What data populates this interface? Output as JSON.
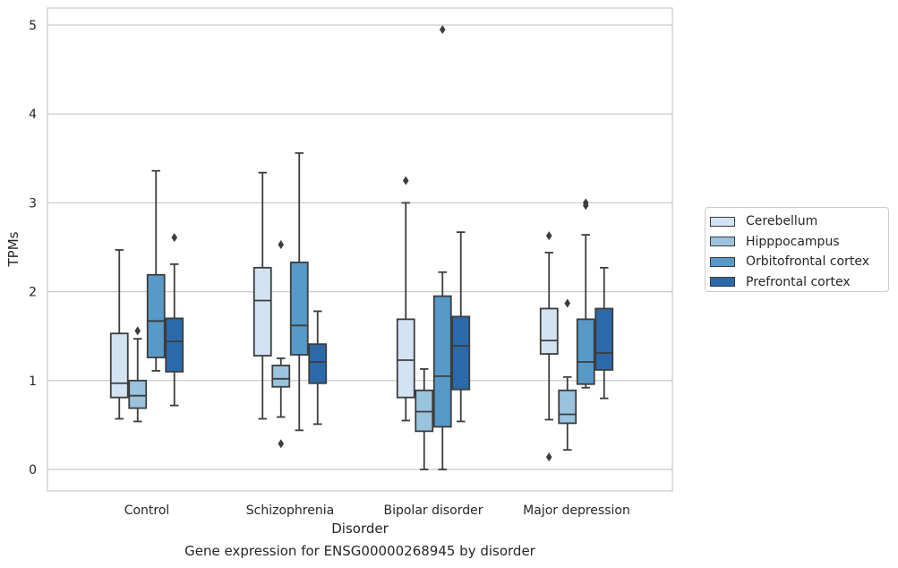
{
  "chart_data": {
    "type": "boxplot",
    "xlabel": "Disorder",
    "ylabel": "TPMs",
    "caption": "Gene expression for ENSG00000268945 by disorder",
    "ylim": [
      -0.25,
      5.2
    ],
    "yticks": [
      0,
      1,
      2,
      3,
      4,
      5
    ],
    "grid": "horizontal",
    "legend_position": "right",
    "categories": [
      "Control",
      "Schizophrenia",
      "Bipolar disorder",
      "Major depression"
    ],
    "series": [
      {
        "name": "Cerebellum",
        "color": "#d4e3f3",
        "boxes": [
          {
            "whislo": 0.57,
            "q1": 0.81,
            "med": 0.97,
            "q3": 1.53,
            "whishi": 2.47,
            "fliers": []
          },
          {
            "whislo": 0.57,
            "q1": 1.28,
            "med": 1.9,
            "q3": 2.27,
            "whishi": 3.34,
            "fliers": []
          },
          {
            "whislo": 0.55,
            "q1": 0.81,
            "med": 1.23,
            "q3": 1.69,
            "whishi": 3.0,
            "fliers": [
              3.25
            ]
          },
          {
            "whislo": 0.56,
            "q1": 1.3,
            "med": 1.45,
            "q3": 1.81,
            "whishi": 2.44,
            "fliers": [
              2.63,
              0.14
            ]
          }
        ]
      },
      {
        "name": "Hipppocampus",
        "color": "#9ac3de",
        "boxes": [
          {
            "whislo": 0.54,
            "q1": 0.69,
            "med": 0.83,
            "q3": 1.0,
            "whishi": 1.47,
            "fliers": [
              1.56
            ]
          },
          {
            "whislo": 0.59,
            "q1": 0.93,
            "med": 1.02,
            "q3": 1.17,
            "whishi": 1.25,
            "fliers": [
              2.53,
              0.29
            ]
          },
          {
            "whislo": 0.0,
            "q1": 0.43,
            "med": 0.65,
            "q3": 0.89,
            "whishi": 1.13,
            "fliers": []
          },
          {
            "whislo": 0.22,
            "q1": 0.52,
            "med": 0.62,
            "q3": 0.89,
            "whishi": 1.04,
            "fliers": [
              1.87
            ]
          }
        ]
      },
      {
        "name": "Orbitofrontal cortex",
        "color": "#5799c7",
        "boxes": [
          {
            "whislo": 1.11,
            "q1": 1.26,
            "med": 1.67,
            "q3": 2.19,
            "whishi": 3.36,
            "fliers": []
          },
          {
            "whislo": 0.44,
            "q1": 1.29,
            "med": 1.62,
            "q3": 2.33,
            "whishi": 3.56,
            "fliers": []
          },
          {
            "whislo": 0.0,
            "q1": 0.48,
            "med": 1.05,
            "q3": 1.95,
            "whishi": 2.22,
            "fliers": [
              4.95
            ]
          },
          {
            "whislo": 0.92,
            "q1": 0.96,
            "med": 1.21,
            "q3": 1.69,
            "whishi": 2.64,
            "fliers": [
              3.0,
              2.97
            ]
          }
        ]
      },
      {
        "name": "Prefrontal cortex",
        "color": "#2b6aaa",
        "boxes": [
          {
            "whislo": 0.72,
            "q1": 1.1,
            "med": 1.44,
            "q3": 1.7,
            "whishi": 2.31,
            "fliers": [
              2.61
            ]
          },
          {
            "whislo": 0.51,
            "q1": 0.97,
            "med": 1.21,
            "q3": 1.41,
            "whishi": 1.78,
            "fliers": []
          },
          {
            "whislo": 0.54,
            "q1": 0.9,
            "med": 1.39,
            "q3": 1.72,
            "whishi": 2.67,
            "fliers": []
          },
          {
            "whislo": 0.8,
            "q1": 1.12,
            "med": 1.31,
            "q3": 1.81,
            "whishi": 2.27,
            "fliers": []
          }
        ]
      }
    ]
  }
}
